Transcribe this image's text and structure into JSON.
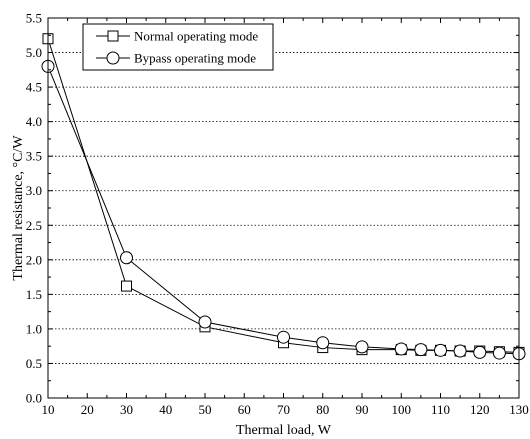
{
  "chart_data": {
    "type": "line",
    "xlabel": "Thermal load, W",
    "ylabel": "Thermal resistance, °C/W",
    "xlim": [
      10,
      130
    ],
    "ylim": [
      0.0,
      5.5
    ],
    "xticks": [
      "10",
      "20",
      "30",
      "40",
      "50",
      "60",
      "70",
      "80",
      "90",
      "100",
      "110",
      "120",
      "130"
    ],
    "yticks": [
      "0.0",
      "0.5",
      "1.0",
      "1.5",
      "2.0",
      "2.5",
      "3.0",
      "3.5",
      "4.0",
      "4.5",
      "5.0",
      "5.5"
    ],
    "grid": "horizontal-dotted",
    "legend_position": "top-left",
    "series": [
      {
        "name": "Normal operating mode",
        "marker": "square",
        "x": [
          10,
          30,
          50,
          70,
          80,
          90,
          100,
          105,
          110,
          115,
          120,
          125,
          130
        ],
        "y": [
          5.2,
          1.62,
          1.03,
          0.8,
          0.73,
          0.7,
          0.7,
          0.69,
          0.69,
          0.68,
          0.68,
          0.67,
          0.66
        ]
      },
      {
        "name": "Bypass operating mode",
        "marker": "circle",
        "x": [
          10,
          30,
          50,
          70,
          80,
          90,
          100,
          105,
          110,
          115,
          120,
          125,
          130
        ],
        "y": [
          4.8,
          2.03,
          1.1,
          0.88,
          0.8,
          0.74,
          0.71,
          0.7,
          0.69,
          0.68,
          0.66,
          0.65,
          0.64
        ]
      }
    ]
  }
}
